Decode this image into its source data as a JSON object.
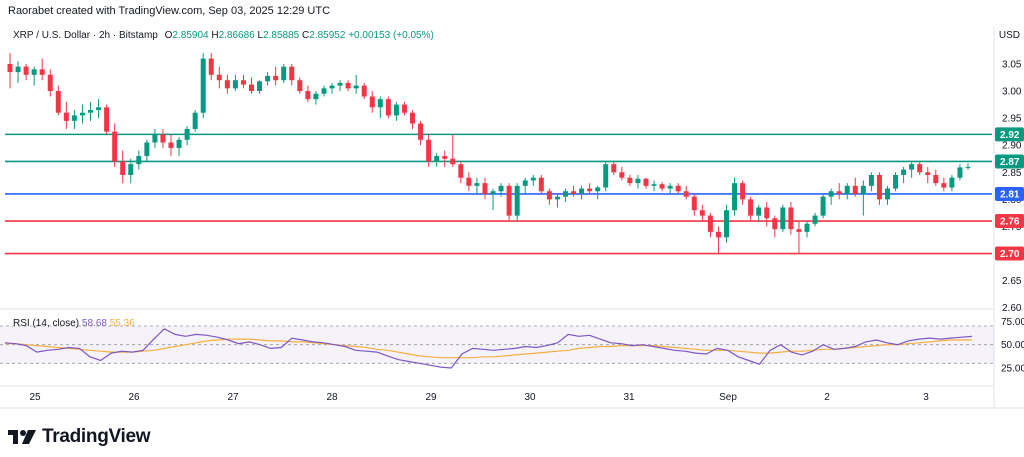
{
  "header": {
    "text": "Raorabet created with TradingView.com, Sep 03, 2025 12:29 UTC"
  },
  "legend": {
    "symbol": "XRP / U.S. Dollar · 2h · Bitstamp",
    "open_label": "O",
    "open": "2.85904",
    "high_label": "H",
    "high": "2.86686",
    "low_label": "L",
    "low": "2.85885",
    "close_label": "C",
    "close": "2.85952",
    "change": "+0.00153 (+0.05%)"
  },
  "rsi_legend": {
    "label": "RSI (14, close)",
    "rsi": "58.68",
    "ma": "55.36"
  },
  "currency": "USD",
  "footer": {
    "brand": "TradingView"
  },
  "colors": {
    "up": "#089981",
    "down": "#f23645",
    "green_line": "#089981",
    "blue_line": "#2962ff",
    "red_line": "#f23645",
    "rsi": "#7e57c2",
    "rsi_ma": "#f5b042"
  },
  "chart_data": [
    {
      "type": "candlestick",
      "title": "XRP / U.S. Dollar · 2h · Bitstamp",
      "ylim": [
        2.605,
        3.085
      ],
      "y_ticks": [
        "3.05",
        "3.00",
        "2.95",
        "2.90",
        "2.85",
        "2.80",
        "2.75",
        "2.70",
        "2.65",
        "2.60"
      ],
      "x_ticks": [
        "25",
        "26",
        "27",
        "28",
        "29",
        "30",
        "31",
        "Sep",
        "2",
        "3"
      ],
      "horizontal_levels": [
        {
          "value": 2.92,
          "label": "2.92",
          "color": "#089981"
        },
        {
          "value": 2.87,
          "label": "2.87",
          "color": "#089981"
        },
        {
          "value": 2.81,
          "label": "2.81",
          "color": "#2962ff"
        },
        {
          "value": 2.76,
          "label": "2.76",
          "color": "#f23645"
        },
        {
          "value": 2.7,
          "label": "2.70",
          "color": "#f23645"
        }
      ],
      "ohlc": [
        [
          3.05,
          3.07,
          3.005,
          3.035
        ],
        [
          3.035,
          3.055,
          3.015,
          3.045
        ],
        [
          3.045,
          3.05,
          3.02,
          3.03
        ],
        [
          3.03,
          3.045,
          3.01,
          3.04
        ],
        [
          3.04,
          3.06,
          3.02,
          3.03
        ],
        [
          3.03,
          3.04,
          2.99,
          3.0
        ],
        [
          3.0,
          3.01,
          2.955,
          2.96
        ],
        [
          2.96,
          2.98,
          2.93,
          2.945
        ],
        [
          2.945,
          2.965,
          2.93,
          2.955
        ],
        [
          2.955,
          2.975,
          2.94,
          2.96
        ],
        [
          2.96,
          2.98,
          2.945,
          2.965
        ],
        [
          2.965,
          2.985,
          2.95,
          2.97
        ],
        [
          2.97,
          2.975,
          2.92,
          2.925
        ],
        [
          2.925,
          2.94,
          2.86,
          2.87
        ],
        [
          2.87,
          2.89,
          2.83,
          2.845
        ],
        [
          2.845,
          2.875,
          2.83,
          2.865
        ],
        [
          2.865,
          2.89,
          2.855,
          2.88
        ],
        [
          2.88,
          2.91,
          2.87,
          2.905
        ],
        [
          2.905,
          2.93,
          2.895,
          2.92
        ],
        [
          2.92,
          2.93,
          2.895,
          2.905
        ],
        [
          2.905,
          2.92,
          2.88,
          2.895
        ],
        [
          2.895,
          2.915,
          2.88,
          2.91
        ],
        [
          2.91,
          2.935,
          2.9,
          2.93
        ],
        [
          2.93,
          2.965,
          2.925,
          2.96
        ],
        [
          2.96,
          3.07,
          2.95,
          3.06
        ],
        [
          3.06,
          3.07,
          3.02,
          3.03
        ],
        [
          3.03,
          3.045,
          3.005,
          3.02
        ],
        [
          3.02,
          3.03,
          2.995,
          3.005
        ],
        [
          3.005,
          3.03,
          3.0,
          3.02
        ],
        [
          3.02,
          3.03,
          3.005,
          3.012
        ],
        [
          3.012,
          3.025,
          2.995,
          3.0
        ],
        [
          3.0,
          3.02,
          2.995,
          3.018
        ],
        [
          3.018,
          3.035,
          3.01,
          3.028
        ],
        [
          3.028,
          3.045,
          3.01,
          3.02
        ],
        [
          3.02,
          3.05,
          3.015,
          3.045
        ],
        [
          3.045,
          3.05,
          3.01,
          3.02
        ],
        [
          3.02,
          3.025,
          2.995,
          3.0
        ],
        [
          3.0,
          3.01,
          2.98,
          2.985
        ],
        [
          2.985,
          3.0,
          2.975,
          2.995
        ],
        [
          2.995,
          3.01,
          2.99,
          3.005
        ],
        [
          3.005,
          3.015,
          2.995,
          3.01
        ],
        [
          3.01,
          3.02,
          3.0,
          3.015
        ],
        [
          3.015,
          3.02,
          3.0,
          3.005
        ],
        [
          3.005,
          3.03,
          2.995,
          3.01
        ],
        [
          3.01,
          3.015,
          2.985,
          2.99
        ],
        [
          2.99,
          3.0,
          2.96,
          2.97
        ],
        [
          2.97,
          2.99,
          2.95,
          2.985
        ],
        [
          2.985,
          2.99,
          2.95,
          2.955
        ],
        [
          2.955,
          2.98,
          2.945,
          2.975
        ],
        [
          2.975,
          2.98,
          2.955,
          2.96
        ],
        [
          2.96,
          2.965,
          2.93,
          2.94
        ],
        [
          2.94,
          2.945,
          2.9,
          2.91
        ],
        [
          2.91,
          2.92,
          2.86,
          2.87
        ],
        [
          2.87,
          2.885,
          2.86,
          2.88
        ],
        [
          2.88,
          2.89,
          2.86,
          2.875
        ],
        [
          2.875,
          2.92,
          2.86,
          2.865
        ],
        [
          2.865,
          2.87,
          2.83,
          2.84
        ],
        [
          2.84,
          2.85,
          2.815,
          2.825
        ],
        [
          2.825,
          2.84,
          2.81,
          2.83
        ],
        [
          2.83,
          2.84,
          2.8,
          2.81
        ],
        [
          2.81,
          2.82,
          2.78,
          2.815
        ],
        [
          2.815,
          2.83,
          2.805,
          2.825
        ],
        [
          2.825,
          2.83,
          2.76,
          2.77
        ],
        [
          2.77,
          2.83,
          2.76,
          2.825
        ],
        [
          2.825,
          2.84,
          2.81,
          2.835
        ],
        [
          2.835,
          2.845,
          2.825,
          2.84
        ],
        [
          2.84,
          2.845,
          2.81,
          2.815
        ],
        [
          2.815,
          2.82,
          2.79,
          2.8
        ],
        [
          2.8,
          2.81,
          2.785,
          2.805
        ],
        [
          2.805,
          2.82,
          2.795,
          2.815
        ],
        [
          2.815,
          2.825,
          2.805,
          2.81
        ],
        [
          2.81,
          2.825,
          2.8,
          2.82
        ],
        [
          2.82,
          2.83,
          2.81,
          2.815
        ],
        [
          2.815,
          2.825,
          2.8,
          2.822
        ],
        [
          2.822,
          2.87,
          2.815,
          2.865
        ],
        [
          2.865,
          2.87,
          2.845,
          2.85
        ],
        [
          2.85,
          2.86,
          2.835,
          2.84
        ],
        [
          2.84,
          2.845,
          2.825,
          2.83
        ],
        [
          2.83,
          2.845,
          2.82,
          2.838
        ],
        [
          2.838,
          2.84,
          2.82,
          2.825
        ],
        [
          2.825,
          2.835,
          2.815,
          2.828
        ],
        [
          2.828,
          2.832,
          2.815,
          2.82
        ],
        [
          2.82,
          2.83,
          2.81,
          2.825
        ],
        [
          2.825,
          2.83,
          2.81,
          2.815
        ],
        [
          2.815,
          2.825,
          2.8,
          2.805
        ],
        [
          2.805,
          2.81,
          2.77,
          2.78
        ],
        [
          2.78,
          2.79,
          2.76,
          2.77
        ],
        [
          2.77,
          2.775,
          2.73,
          2.74
        ],
        [
          2.74,
          2.75,
          2.7,
          2.73
        ],
        [
          2.73,
          2.79,
          2.72,
          2.78
        ],
        [
          2.78,
          2.84,
          2.77,
          2.83
        ],
        [
          2.83,
          2.835,
          2.79,
          2.8
        ],
        [
          2.8,
          2.805,
          2.76,
          2.77
        ],
        [
          2.77,
          2.79,
          2.76,
          2.785
        ],
        [
          2.785,
          2.795,
          2.75,
          2.765
        ],
        [
          2.765,
          2.77,
          2.73,
          2.745
        ],
        [
          2.745,
          2.79,
          2.74,
          2.785
        ],
        [
          2.785,
          2.795,
          2.735,
          2.745
        ],
        [
          2.745,
          2.76,
          2.7,
          2.74
        ],
        [
          2.74,
          2.76,
          2.73,
          2.755
        ],
        [
          2.755,
          2.775,
          2.75,
          2.77
        ],
        [
          2.77,
          2.81,
          2.765,
          2.805
        ],
        [
          2.805,
          2.82,
          2.79,
          2.815
        ],
        [
          2.815,
          2.83,
          2.8,
          2.81
        ],
        [
          2.81,
          2.83,
          2.8,
          2.825
        ],
        [
          2.825,
          2.84,
          2.805,
          2.81
        ],
        [
          2.81,
          2.835,
          2.77,
          2.825
        ],
        [
          2.825,
          2.85,
          2.815,
          2.845
        ],
        [
          2.845,
          2.85,
          2.79,
          2.8
        ],
        [
          2.8,
          2.825,
          2.79,
          2.82
        ],
        [
          2.82,
          2.85,
          2.815,
          2.845
        ],
        [
          2.845,
          2.86,
          2.83,
          2.855
        ],
        [
          2.855,
          2.87,
          2.84,
          2.865
        ],
        [
          2.865,
          2.87,
          2.845,
          2.85
        ],
        [
          2.85,
          2.86,
          2.83,
          2.845
        ],
        [
          2.845,
          2.855,
          2.825,
          2.83
        ],
        [
          2.83,
          2.84,
          2.815,
          2.822
        ],
        [
          2.822,
          2.845,
          2.815,
          2.84
        ],
        [
          2.84,
          2.865,
          2.835,
          2.859
        ],
        [
          2.859,
          2.867,
          2.855,
          2.86
        ]
      ]
    },
    {
      "type": "line",
      "title": "RSI (14, close)",
      "ylim": [
        10,
        85
      ],
      "y_ticks": [
        "75.00",
        "50.00",
        "25.00"
      ],
      "band": [
        30,
        70
      ],
      "series": [
        {
          "name": "RSI",
          "color": "#7e57c2",
          "values": [
            52,
            51,
            49,
            42,
            44,
            45,
            47,
            46,
            37,
            33,
            41,
            43,
            42,
            44,
            56,
            67,
            61,
            59,
            61,
            60,
            58,
            55,
            51,
            53,
            50,
            46,
            47,
            57,
            55,
            53,
            52,
            50,
            48,
            44,
            43,
            42,
            38,
            34,
            32,
            30,
            28,
            26,
            25,
            40,
            46,
            45,
            44,
            45,
            46,
            48,
            47,
            49,
            52,
            61,
            59,
            60,
            56,
            52,
            51,
            49,
            50,
            48,
            46,
            44,
            43,
            41,
            40,
            46,
            44,
            37,
            33,
            29,
            44,
            50,
            42,
            39,
            43,
            50,
            45,
            46,
            48,
            53,
            55,
            52,
            50,
            54,
            56,
            57,
            56,
            57,
            58,
            59
          ]
        },
        {
          "name": "RSI MA",
          "color": "#f5b042",
          "values": [
            51,
            51,
            50,
            49,
            48,
            47,
            46,
            45,
            44,
            43,
            42,
            42,
            42,
            43,
            44,
            46,
            48,
            50,
            52,
            54,
            55,
            56,
            56,
            56,
            55,
            54,
            54,
            53,
            53,
            52,
            51,
            50,
            49,
            48,
            47,
            45,
            44,
            42,
            40,
            38,
            37,
            36,
            36,
            36,
            36,
            37,
            37,
            38,
            39,
            40,
            41,
            42,
            43,
            44,
            46,
            47,
            48,
            48,
            49,
            49,
            49,
            49,
            48,
            47,
            46,
            45,
            44,
            44,
            44,
            43,
            42,
            41,
            41,
            42,
            43,
            43,
            44,
            45,
            45,
            46,
            47,
            48,
            49,
            50,
            50,
            51,
            52,
            53,
            54,
            55,
            55,
            55
          ]
        }
      ]
    }
  ]
}
